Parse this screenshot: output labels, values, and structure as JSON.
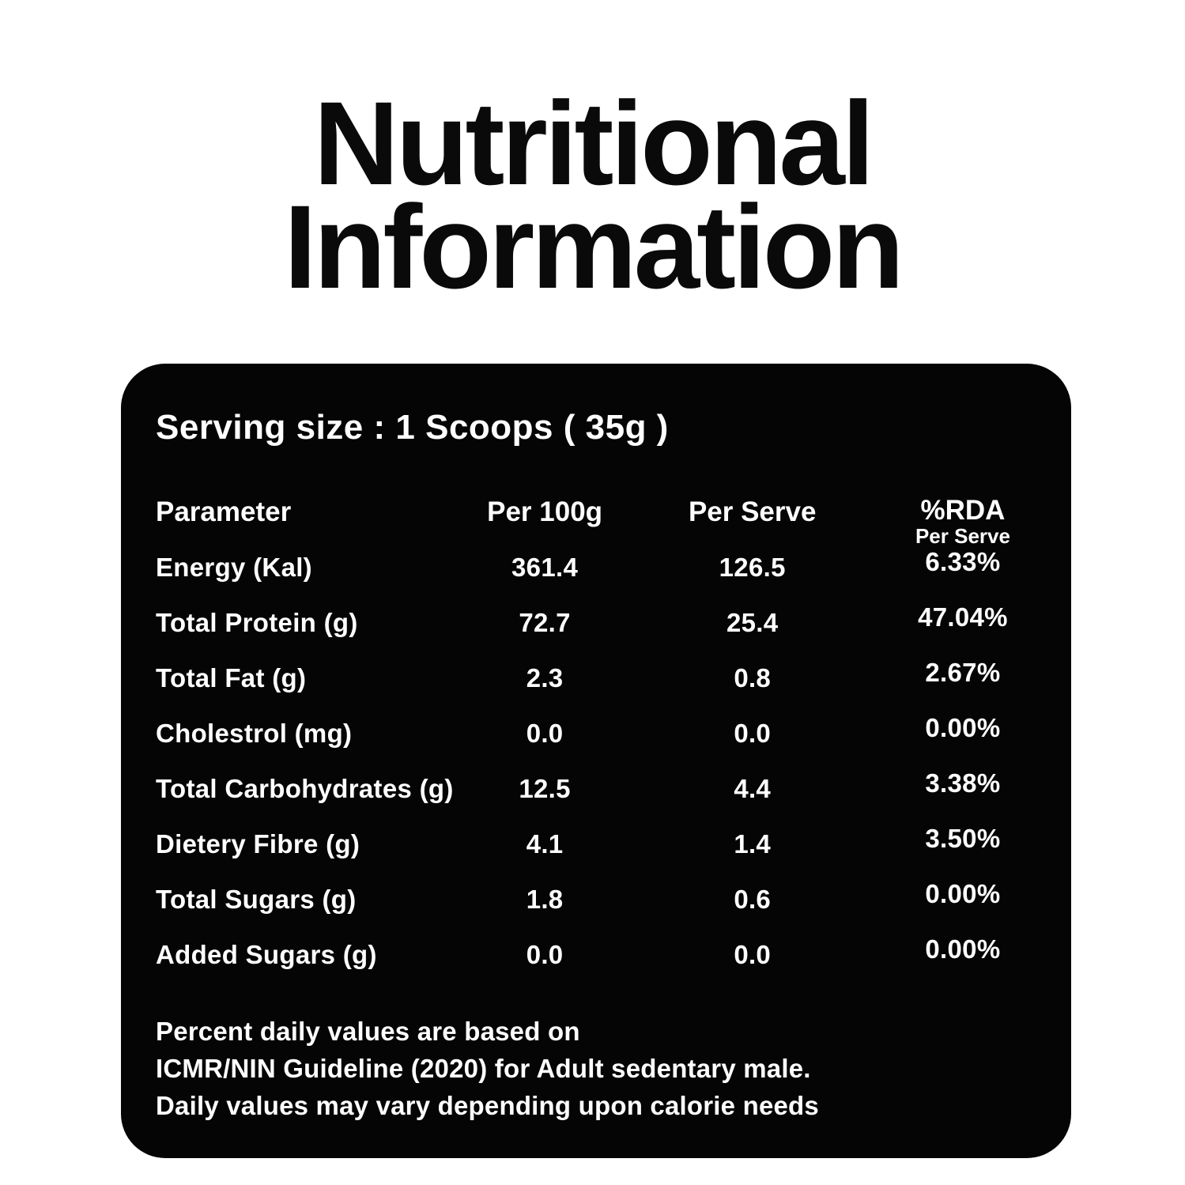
{
  "title": {
    "line1": "Nutritional",
    "line2": "Information"
  },
  "colors": {
    "panel_bg": "#050505",
    "panel_text": "#ffffff",
    "title_text": "#0a0a0a",
    "page_bg": "#ffffff"
  },
  "panel": {
    "serving": {
      "label": "Serving size :",
      "value": "1 Scoops ( 35g )"
    },
    "table": {
      "headers": {
        "parameter": "Parameter",
        "per100g": "Per 100g",
        "perServe": "Per Serve",
        "rda": "%RDA",
        "rdaSub": "Per Serve"
      },
      "rows": [
        {
          "param": "Energy (Kal)",
          "per100g": "361.4",
          "perServe": "126.5",
          "rda": "6.33%"
        },
        {
          "param": "Total Protein (g)",
          "per100g": "72.7",
          "perServe": "25.4",
          "rda": "47.04%"
        },
        {
          "param": "Total Fat (g)",
          "per100g": "2.3",
          "perServe": "0.8",
          "rda": "2.67%"
        },
        {
          "param": "Cholestrol (mg)",
          "per100g": "0.0",
          "perServe": "0.0",
          "rda": "0.00%"
        },
        {
          "param": "Total Carbohydrates (g)",
          "per100g": "12.5",
          "perServe": "4.4",
          "rda": "3.38%"
        },
        {
          "param": "Dietery Fibre (g)",
          "per100g": "4.1",
          "perServe": "1.4",
          "rda": "3.50%"
        },
        {
          "param": "Total Sugars (g)",
          "per100g": "1.8",
          "perServe": "0.6",
          "rda": "0.00%"
        },
        {
          "param": "Added Sugars (g)",
          "per100g": "0.0",
          "perServe": "0.0",
          "rda": "0.00%"
        }
      ]
    },
    "footnote": {
      "line1": "Percent daily values are based on",
      "line2": "ICMR/NIN Guideline (2020) for Adult sedentary male.",
      "line3": "Daily values may vary depending upon calorie needs"
    }
  }
}
